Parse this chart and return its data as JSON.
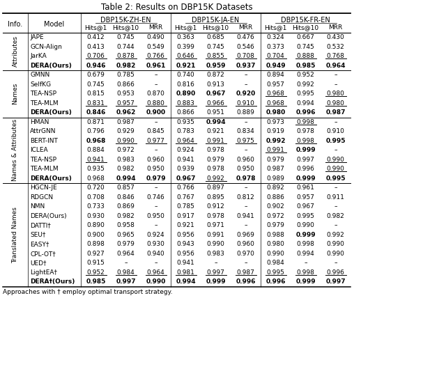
{
  "title": "Table 2: Results on DBP15K Datasets",
  "footnote": "Approaches with † employ optimal transport strategy.",
  "row_groups": [
    {
      "group_label": "Attributes",
      "rows": [
        {
          "model": "JAPE",
          "bold_model": false,
          "vals": [
            "0.412",
            "0.745",
            "0.490",
            "0.363",
            "0.685",
            "0.476",
            "0.324",
            "0.667",
            "0.430"
          ],
          "bold": [],
          "underline": []
        },
        {
          "model": "GCN-Align",
          "bold_model": false,
          "vals": [
            "0.413",
            "0.744",
            "0.549",
            "0.399",
            "0.745",
            "0.546",
            "0.373",
            "0.745",
            "0.532"
          ],
          "bold": [],
          "underline": []
        },
        {
          "model": "JarKA",
          "bold_model": false,
          "vals": [
            "0.706",
            "0.878",
            "0.766",
            "0.646",
            "0.855",
            "0.708",
            "0.704",
            "0.888",
            "0.768"
          ],
          "bold": [],
          "underline": [
            0,
            1,
            2,
            3,
            4,
            5,
            6,
            7,
            8
          ]
        },
        {
          "model": "DERA(Ours)",
          "bold_model": true,
          "vals": [
            "0.946",
            "0.982",
            "0.961",
            "0.921",
            "0.959",
            "0.937",
            "0.949",
            "0.985",
            "0.964"
          ],
          "bold": [
            0,
            1,
            2,
            3,
            4,
            5,
            6,
            7,
            8
          ],
          "underline": []
        }
      ]
    },
    {
      "group_label": "Names",
      "rows": [
        {
          "model": "GMNN",
          "bold_model": false,
          "vals": [
            "0.679",
            "0.785",
            "–",
            "0.740",
            "0.872",
            "–",
            "0.894",
            "0.952",
            "–"
          ],
          "bold": [],
          "underline": []
        },
        {
          "model": "SelfKG",
          "bold_model": false,
          "vals": [
            "0.745",
            "0.866",
            "–",
            "0.816",
            "0.913",
            "–",
            "0.957",
            "0.992",
            "–"
          ],
          "bold": [],
          "underline": []
        },
        {
          "model": "TEA-NSP",
          "bold_model": false,
          "vals": [
            "0.815",
            "0.953",
            "0.870",
            "0.890",
            "0.967",
            "0.920",
            "0.968",
            "0.995",
            "0.980"
          ],
          "bold": [
            3,
            4,
            5
          ],
          "underline": [
            6,
            8
          ]
        },
        {
          "model": "TEA-MLM",
          "bold_model": false,
          "vals": [
            "0.831",
            "0.957",
            "0.880",
            "0.883",
            "0.966",
            "0.910",
            "0.968",
            "0.994",
            "0.980"
          ],
          "bold": [],
          "underline": [
            0,
            1,
            2,
            3,
            4,
            5,
            6,
            8
          ]
        },
        {
          "model": "DERA(Ours)",
          "bold_model": true,
          "vals": [
            "0.846",
            "0.962",
            "0.900",
            "0.866",
            "0.951",
            "0.889",
            "0.980",
            "0.996",
            "0.987"
          ],
          "bold": [
            0,
            1,
            2,
            6,
            7,
            8
          ],
          "underline": []
        }
      ]
    },
    {
      "group_label": "Names & Attributes",
      "rows": [
        {
          "model": "HMAN",
          "bold_model": false,
          "vals": [
            "0.871",
            "0.987",
            "–",
            "0.935",
            "0.994",
            "–",
            "0.973",
            "0.998",
            "–"
          ],
          "bold": [
            4
          ],
          "underline": [
            7
          ]
        },
        {
          "model": "AttrGNN",
          "bold_model": false,
          "vals": [
            "0.796",
            "0.929",
            "0.845",
            "0.783",
            "0.921",
            "0.834",
            "0.919",
            "0.978",
            "0.910"
          ],
          "bold": [],
          "underline": []
        },
        {
          "model": "BERT-INT",
          "bold_model": false,
          "vals": [
            "0.968",
            "0.990",
            "0.977",
            "0.964",
            "0.991",
            "0.975",
            "0.992",
            "0.998",
            "0.995"
          ],
          "bold": [
            0,
            6,
            8
          ],
          "underline": [
            1,
            2,
            3,
            4,
            5,
            7
          ]
        },
        {
          "model": "ICLEA",
          "bold_model": false,
          "vals": [
            "0.884",
            "0.972",
            "–",
            "0.924",
            "0.978",
            "–",
            "0.991",
            "0.999",
            "–"
          ],
          "bold": [
            7
          ],
          "underline": [
            6
          ]
        },
        {
          "model": "TEA-NSP",
          "bold_model": false,
          "vals": [
            "0.941",
            "0.983",
            "0.960",
            "0.941",
            "0.979",
            "0.960",
            "0.979",
            "0.997",
            "0.990"
          ],
          "bold": [],
          "underline": [
            0,
            8
          ]
        },
        {
          "model": "TEA-MLM",
          "bold_model": false,
          "vals": [
            "0.935",
            "0.982",
            "0.950",
            "0.939",
            "0.978",
            "0.950",
            "0.987",
            "0.996",
            "0.990"
          ],
          "bold": [],
          "underline": [
            8
          ]
        },
        {
          "model": "DERA(Ours)",
          "bold_model": true,
          "vals": [
            "0.968",
            "0.994",
            "0.979",
            "0.967",
            "0.992",
            "0.978",
            "0.989",
            "0.999",
            "0.995"
          ],
          "bold": [
            1,
            2,
            3,
            5,
            7,
            8
          ],
          "underline": [
            4
          ]
        }
      ]
    },
    {
      "group_label": "Translated Names",
      "rows": [
        {
          "model": "HGCN-JE",
          "bold_model": false,
          "vals": [
            "0.720",
            "0.857",
            "–",
            "0.766",
            "0.897",
            "–",
            "0.892",
            "0.961",
            "–"
          ],
          "bold": [],
          "underline": []
        },
        {
          "model": "RDGCN",
          "bold_model": false,
          "vals": [
            "0.708",
            "0.846",
            "0.746",
            "0.767",
            "0.895",
            "0.812",
            "0.886",
            "0.957",
            "0.911"
          ],
          "bold": [],
          "underline": []
        },
        {
          "model": "NMN",
          "bold_model": false,
          "vals": [
            "0.733",
            "0.869",
            "–",
            "0.785",
            "0.912",
            "–",
            "0.902",
            "0.967",
            "–"
          ],
          "bold": [],
          "underline": []
        },
        {
          "model": "DERA(Ours)",
          "bold_model": false,
          "vals": [
            "0.930",
            "0.982",
            "0.950",
            "0.917",
            "0.978",
            "0.941",
            "0.972",
            "0.995",
            "0.982"
          ],
          "bold": [],
          "underline": []
        },
        {
          "model": "DATTI†",
          "bold_model": false,
          "vals": [
            "0.890",
            "0.958",
            "–",
            "0.921",
            "0.971",
            "–",
            "0.979",
            "0.990",
            "–"
          ],
          "bold": [],
          "underline": []
        },
        {
          "model": "SEU†",
          "bold_model": false,
          "vals": [
            "0.900",
            "0.965",
            "0.924",
            "0.956",
            "0.991",
            "0.969",
            "0.988",
            "0.999",
            "0.992"
          ],
          "bold": [
            7
          ],
          "underline": []
        },
        {
          "model": "EASY†",
          "bold_model": false,
          "vals": [
            "0.898",
            "0.979",
            "0.930",
            "0.943",
            "0.990",
            "0.960",
            "0.980",
            "0.998",
            "0.990"
          ],
          "bold": [],
          "underline": []
        },
        {
          "model": "CPL-OT†",
          "bold_model": false,
          "vals": [
            "0.927",
            "0.964",
            "0.940",
            "0.956",
            "0.983",
            "0.970",
            "0.990",
            "0.994",
            "0.990"
          ],
          "bold": [],
          "underline": []
        },
        {
          "model": "UED†",
          "bold_model": false,
          "vals": [
            "0.915",
            "–",
            "–",
            "0.941",
            "–",
            "–",
            "0.984",
            "–",
            "–"
          ],
          "bold": [],
          "underline": []
        },
        {
          "model": "LightEA†",
          "bold_model": false,
          "vals": [
            "0.952",
            "0.984",
            "0.964",
            "0.981",
            "0.997",
            "0.987",
            "0.995",
            "0.998",
            "0.996"
          ],
          "bold": [],
          "underline": [
            0,
            1,
            2,
            3,
            4,
            5,
            6,
            7,
            8
          ]
        },
        {
          "model": "DERA†(Ours)",
          "bold_model": true,
          "vals": [
            "0.985",
            "0.997",
            "0.990",
            "0.994",
            "0.999",
            "0.996",
            "0.996",
            "0.999",
            "0.997"
          ],
          "bold": [
            0,
            1,
            2,
            3,
            4,
            5,
            6,
            7,
            8
          ],
          "underline": []
        }
      ]
    }
  ]
}
